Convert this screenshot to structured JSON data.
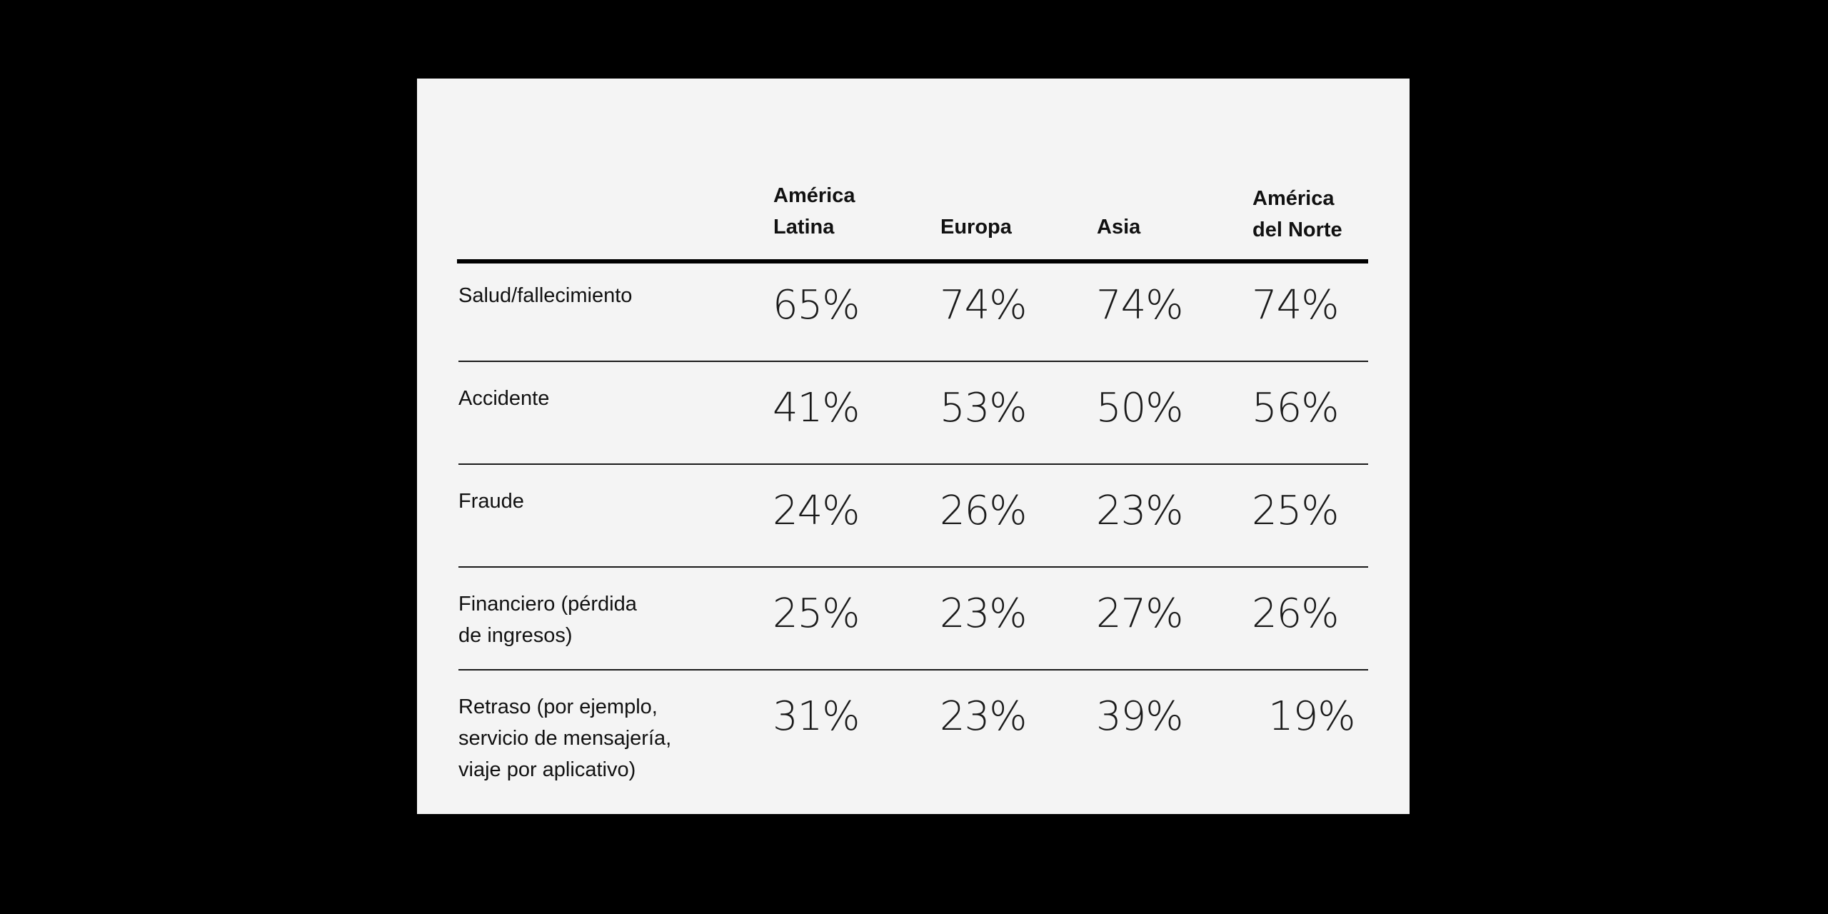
{
  "chart_data": {
    "type": "table",
    "columns": [
      {
        "lines": [
          "América",
          "Latina"
        ]
      },
      {
        "lines": [
          "Europa"
        ]
      },
      {
        "lines": [
          "Asia"
        ]
      },
      {
        "lines": [
          "América",
          "del Norte"
        ]
      }
    ],
    "rows": [
      {
        "lines": [
          "Salud/fallecimiento"
        ],
        "values": [
          "65%",
          "74%",
          "74%",
          "74%"
        ]
      },
      {
        "lines": [
          "Accidente"
        ],
        "values": [
          "41%",
          "53%",
          "50%",
          "56%"
        ]
      },
      {
        "lines": [
          "Fraude"
        ],
        "values": [
          "24%",
          "26%",
          "23%",
          "25%"
        ]
      },
      {
        "lines": [
          "Financiero (pérdida",
          "de ingresos)"
        ],
        "values": [
          "25%",
          "23%",
          "27%",
          "26%"
        ]
      },
      {
        "lines": [
          "Retraso (por ejemplo,",
          "servicio de mensajería,",
          "viaje por aplicativo)"
        ],
        "values": [
          "31%",
          "23%",
          "39%",
          "19%"
        ]
      }
    ]
  }
}
